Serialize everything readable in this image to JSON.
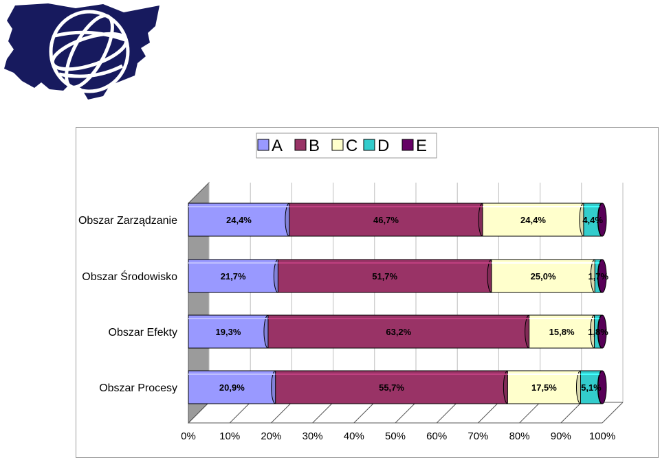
{
  "logo": {
    "shape": "regional-map-with-globe",
    "fill": "#171a5e"
  },
  "chart_data": {
    "type": "bar",
    "orientation": "horizontal",
    "stacked": "percent",
    "categories": [
      "Obszar Zarządzanie",
      "Obszar Środowisko",
      "Obszar Efekty",
      "Obszar Procesy"
    ],
    "series": [
      {
        "name": "A",
        "color": "#9999ff",
        "values": [
          24.4,
          21.7,
          19.3,
          20.9
        ],
        "labels": [
          "24,4%",
          "21,7%",
          "19,3%",
          "20,9%"
        ]
      },
      {
        "name": "B",
        "color": "#993366",
        "values": [
          46.7,
          51.7,
          63.2,
          55.7
        ],
        "labels": [
          "46,7%",
          "51,7%",
          "63,2%",
          "55,7%"
        ]
      },
      {
        "name": "C",
        "color": "#ffffcc",
        "values": [
          24.4,
          25.0,
          15.8,
          17.5
        ],
        "labels": [
          "24,4%",
          "25,0%",
          "15,8%",
          "17,5%"
        ]
      },
      {
        "name": "D",
        "color": "#33cccc",
        "values": [
          4.4,
          1.7,
          1.8,
          5.1
        ],
        "labels": [
          "4,4%",
          "1,7%",
          "1,8%",
          "5,1%"
        ]
      },
      {
        "name": "E",
        "color": "#660066",
        "values": [
          0.1,
          0.1,
          0.1,
          0.1
        ],
        "labels": [
          "",
          "",
          "",
          ""
        ]
      }
    ],
    "x_ticks": [
      "0%",
      "10%",
      "20%",
      "30%",
      "40%",
      "50%",
      "60%",
      "70%",
      "80%",
      "90%",
      "100%"
    ],
    "xlim": [
      0,
      100
    ],
    "legend": "top",
    "grid": true,
    "style": "3d"
  }
}
